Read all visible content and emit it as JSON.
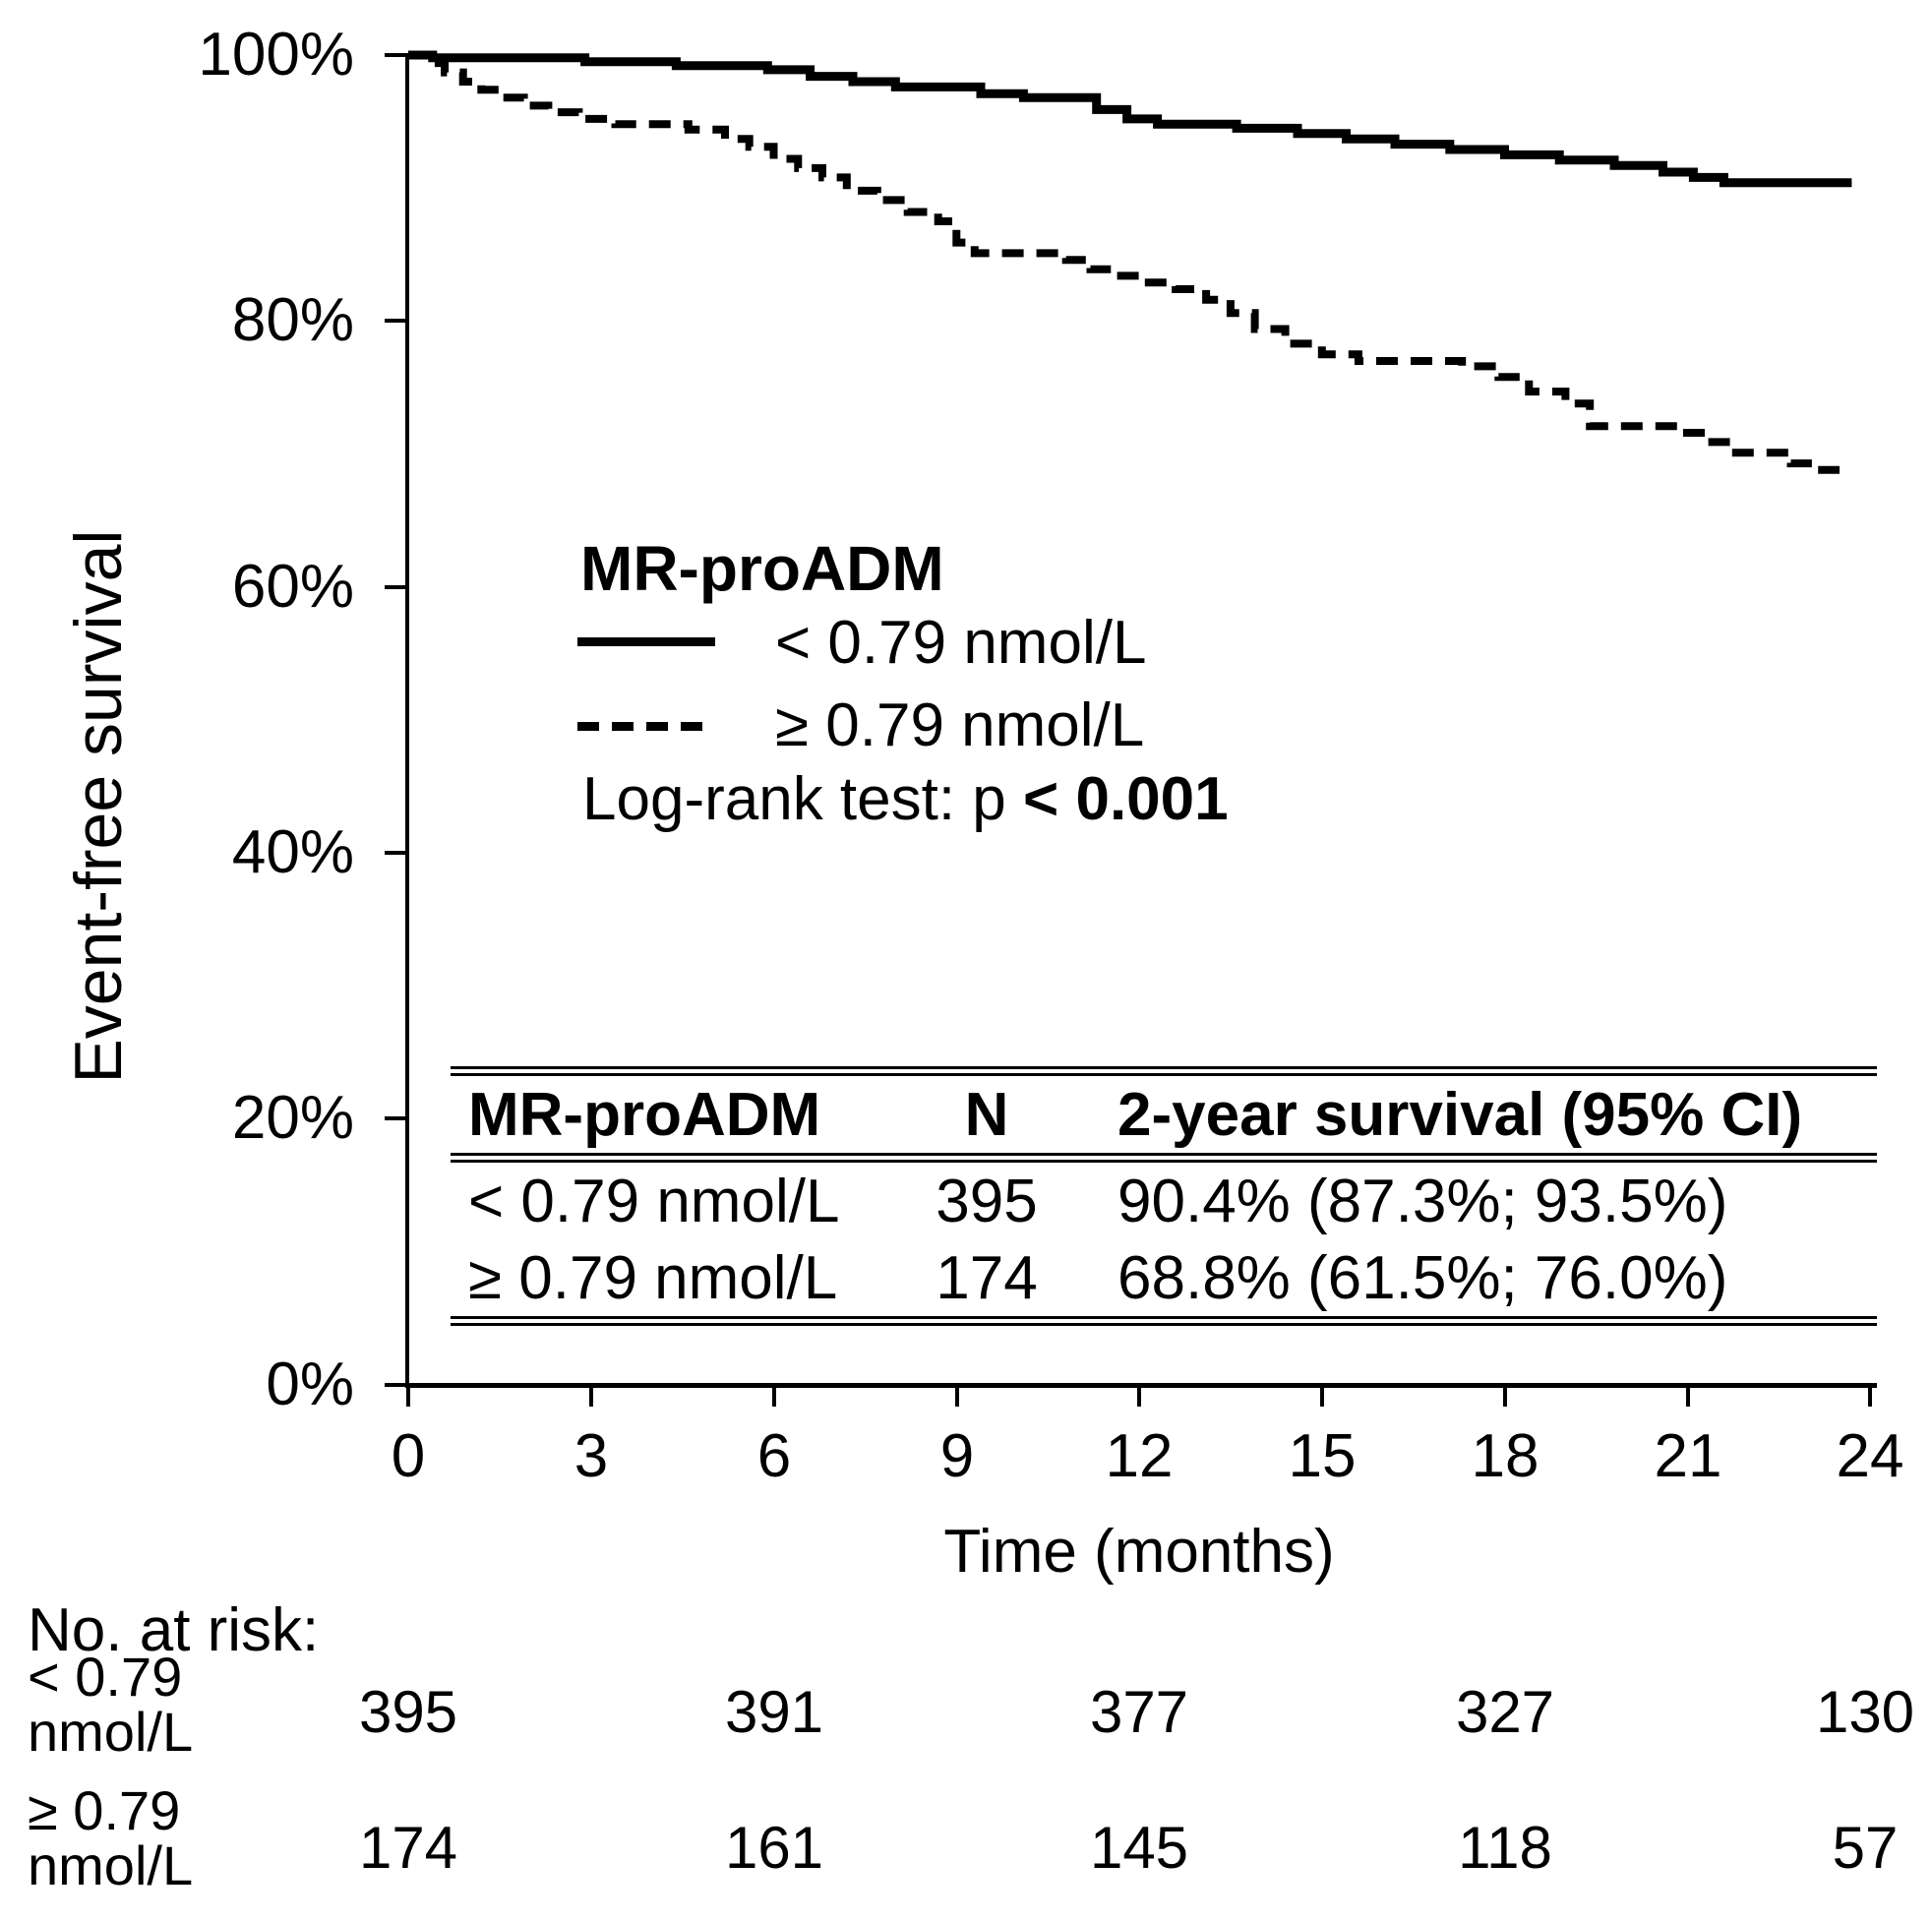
{
  "chart_data": {
    "type": "line",
    "subtype": "kaplan-meier-step",
    "title": "",
    "xlabel": "Time (months)",
    "ylabel": "Event-free survival",
    "xlim": [
      0,
      24
    ],
    "ylim": [
      0,
      100
    ],
    "grid": false,
    "x_ticks": [
      0,
      3,
      6,
      9,
      12,
      15,
      18,
      21,
      24
    ],
    "x_tick_labels": [
      "0",
      "3",
      "6",
      "9",
      "12",
      "15",
      "18",
      "21",
      "24"
    ],
    "y_ticks": [
      100,
      80,
      60,
      40,
      20,
      0
    ],
    "y_tick_labels": [
      "100%",
      "80%",
      "60%",
      "40%",
      "20%",
      "0%"
    ],
    "legend": {
      "position": "inside-left-middle",
      "title": "MR-proADM",
      "entries": [
        "< 0.79 nmol/L",
        "≥ 0.79 nmol/L"
      ],
      "note_prefix": "Log-rank test: p ",
      "note_bold": "< 0.001"
    },
    "series": [
      {
        "name": "< 0.79 nmol/L",
        "style": "solid",
        "color": "#000000",
        "end_time": 23.7,
        "steps": [
          [
            0,
            100
          ],
          [
            0.4,
            99.8
          ],
          [
            2.9,
            99.5
          ],
          [
            4.4,
            99.2
          ],
          [
            5.9,
            98.9
          ],
          [
            6.6,
            98.4
          ],
          [
            7.3,
            98.0
          ],
          [
            8.0,
            97.6
          ],
          [
            9.4,
            97.1
          ],
          [
            10.1,
            96.8
          ],
          [
            11.3,
            95.9
          ],
          [
            11.8,
            95.2
          ],
          [
            12.3,
            94.8
          ],
          [
            13.6,
            94.5
          ],
          [
            14.6,
            94.1
          ],
          [
            15.4,
            93.7
          ],
          [
            16.2,
            93.3
          ],
          [
            17.1,
            92.9
          ],
          [
            18.0,
            92.5
          ],
          [
            18.9,
            92.1
          ],
          [
            19.8,
            91.7
          ],
          [
            20.6,
            91.2
          ],
          [
            21.1,
            90.8
          ],
          [
            21.6,
            90.4
          ]
        ]
      },
      {
        "name": "≥ 0.79 nmol/L",
        "style": "dashed",
        "color": "#000000",
        "end_time": 23.5,
        "steps": [
          [
            0,
            100
          ],
          [
            0.3,
            99.4
          ],
          [
            0.6,
            98.7
          ],
          [
            0.9,
            98.0
          ],
          [
            1.2,
            97.4
          ],
          [
            1.5,
            96.8
          ],
          [
            1.9,
            96.2
          ],
          [
            2.3,
            95.7
          ],
          [
            2.8,
            95.2
          ],
          [
            3.4,
            94.8
          ],
          [
            4.6,
            94.4
          ],
          [
            5.2,
            93.7
          ],
          [
            5.6,
            93.1
          ],
          [
            6.0,
            92.2
          ],
          [
            6.4,
            91.5
          ],
          [
            6.8,
            90.8
          ],
          [
            7.2,
            89.8
          ],
          [
            7.7,
            89.1
          ],
          [
            8.2,
            88.2
          ],
          [
            8.7,
            87.5
          ],
          [
            9.0,
            85.9
          ],
          [
            9.3,
            85.1
          ],
          [
            10.8,
            84.6
          ],
          [
            11.2,
            83.9
          ],
          [
            11.6,
            83.4
          ],
          [
            12.0,
            82.9
          ],
          [
            12.6,
            82.4
          ],
          [
            13.1,
            81.6
          ],
          [
            13.5,
            80.6
          ],
          [
            13.9,
            79.4
          ],
          [
            14.4,
            78.3
          ],
          [
            15.0,
            77.5
          ],
          [
            15.6,
            77.0
          ],
          [
            17.3,
            76.6
          ],
          [
            17.9,
            75.8
          ],
          [
            18.4,
            74.7
          ],
          [
            19.0,
            73.8
          ],
          [
            19.4,
            72.1
          ],
          [
            20.9,
            71.6
          ],
          [
            21.3,
            70.9
          ],
          [
            21.8,
            70.1
          ],
          [
            22.7,
            69.3
          ],
          [
            23.1,
            68.8
          ]
        ]
      }
    ]
  },
  "inset_table": {
    "headers": [
      "MR-proADM",
      "N",
      "2-year survival (95% CI)"
    ],
    "rows": [
      [
        "< 0.79 nmol/L",
        "395",
        "90.4% (87.3%; 93.5%)"
      ],
      [
        "≥ 0.79 nmol/L",
        "174",
        "68.8% (61.5%; 76.0%)"
      ]
    ]
  },
  "risk_table": {
    "title": "No. at risk:",
    "count_times": [
      0,
      6,
      12,
      18,
      24
    ],
    "rows": [
      {
        "label_line1": "< 0.79",
        "label_line2": "nmol/L",
        "counts": [
          "395",
          "391",
          "377",
          "327",
          "130"
        ]
      },
      {
        "label_line1": "≥ 0.79",
        "label_line2": "nmol/L",
        "counts": [
          "174",
          "161",
          "145",
          "118",
          "57"
        ]
      }
    ]
  },
  "colors": {
    "foreground": "#000000",
    "background": "#ffffff"
  }
}
